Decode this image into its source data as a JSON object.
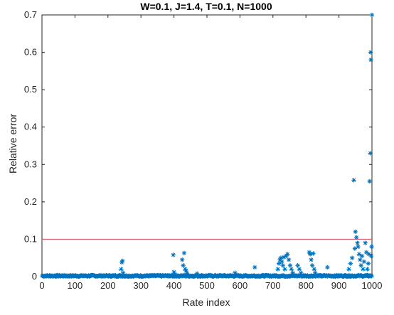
{
  "chart_data": {
    "type": "scatter",
    "title": "W=0.1, J=1.4, T=0.1, N=1000",
    "xlabel": "Rate index",
    "ylabel": "Relative error",
    "xlim": [
      0,
      1000
    ],
    "ylim": [
      0,
      0.7
    ],
    "xticks": [
      "0",
      "100",
      "200",
      "300",
      "400",
      "500",
      "600",
      "700",
      "800",
      "900",
      "1000"
    ],
    "yticks": [
      "0",
      "0.1",
      "0.2",
      "0.3",
      "0.4",
      "0.5",
      "0.6",
      "0.7"
    ],
    "grid": false,
    "marker": "asterisk",
    "colors": {
      "series": "#0072bd",
      "threshold": "#d95a6b"
    },
    "threshold_line": {
      "y": 0.1
    },
    "baseline_note": "dense points near 0 for indices 1-1000",
    "points": [
      [
        240,
        0.02
      ],
      [
        242,
        0.038
      ],
      [
        244,
        0.042
      ],
      [
        246,
        0.01
      ],
      [
        398,
        0.058
      ],
      [
        400,
        0.012
      ],
      [
        402,
        0.006
      ],
      [
        425,
        0.045
      ],
      [
        428,
        0.03
      ],
      [
        431,
        0.063
      ],
      [
        434,
        0.02
      ],
      [
        437,
        0.015
      ],
      [
        440,
        0.008
      ],
      [
        470,
        0.008
      ],
      [
        585,
        0.01
      ],
      [
        645,
        0.025
      ],
      [
        715,
        0.02
      ],
      [
        718,
        0.035
      ],
      [
        721,
        0.045
      ],
      [
        724,
        0.05
      ],
      [
        727,
        0.04
      ],
      [
        730,
        0.03
      ],
      [
        733,
        0.052
      ],
      [
        736,
        0.02
      ],
      [
        740,
        0.055
      ],
      [
        744,
        0.06
      ],
      [
        748,
        0.045
      ],
      [
        752,
        0.03
      ],
      [
        756,
        0.02
      ],
      [
        760,
        0.01
      ],
      [
        775,
        0.03
      ],
      [
        780,
        0.02
      ],
      [
        785,
        0.01
      ],
      [
        810,
        0.065
      ],
      [
        813,
        0.06
      ],
      [
        816,
        0.045
      ],
      [
        819,
        0.03
      ],
      [
        822,
        0.062
      ],
      [
        825,
        0.02
      ],
      [
        828,
        0.01
      ],
      [
        865,
        0.025
      ],
      [
        930,
        0.02
      ],
      [
        935,
        0.035
      ],
      [
        940,
        0.05
      ],
      [
        945,
        0.258
      ],
      [
        948,
        0.075
      ],
      [
        950,
        0.12
      ],
      [
        953,
        0.105
      ],
      [
        956,
        0.09
      ],
      [
        958,
        0.08
      ],
      [
        961,
        0.06
      ],
      [
        964,
        0.045
      ],
      [
        967,
        0.03
      ],
      [
        970,
        0.055
      ],
      [
        973,
        0.02
      ],
      [
        976,
        0.04
      ],
      [
        980,
        0.09
      ],
      [
        983,
        0.065
      ],
      [
        986,
        0.02
      ],
      [
        989,
        0.035
      ],
      [
        991,
        0.06
      ],
      [
        993,
        0.255
      ],
      [
        995,
        0.33
      ],
      [
        996,
        0.6
      ],
      [
        997,
        0.58
      ],
      [
        998,
        0.055
      ],
      [
        999,
        0.08
      ],
      [
        1000,
        0.7
      ]
    ]
  }
}
